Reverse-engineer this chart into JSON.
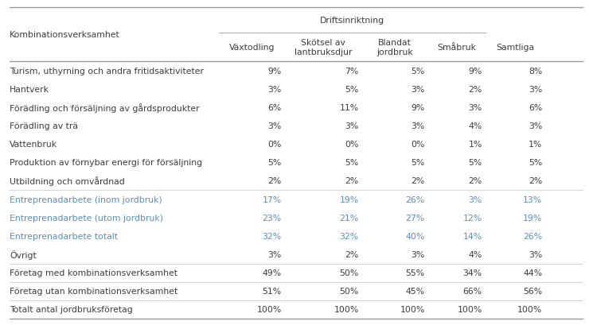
{
  "header_group": "Driftsinriktning",
  "col_headers": [
    "Kombinationsverksamhet",
    "Växtodling",
    "Skötsel av\nlantbruksdjur",
    "Blandat\njordbruk",
    "Småbruk",
    "Samtliga"
  ],
  "rows": [
    {
      "label": "Turism, uthyrning och andra fritidsaktiviteter",
      "values": [
        "9%",
        "7%",
        "5%",
        "9%",
        "8%"
      ],
      "color": "#3c3c3c"
    },
    {
      "label": "Hantverk",
      "values": [
        "3%",
        "5%",
        "3%",
        "2%",
        "3%"
      ],
      "color": "#3c3c3c"
    },
    {
      "label": "Förädling och försäljning av gårdsprodukter",
      "values": [
        "6%",
        "11%",
        "9%",
        "3%",
        "6%"
      ],
      "color": "#3c3c3c"
    },
    {
      "label": "Förädling av trä",
      "values": [
        "3%",
        "3%",
        "3%",
        "4%",
        "3%"
      ],
      "color": "#3c3c3c"
    },
    {
      "label": "Vattenbruk",
      "values": [
        "0%",
        "0%",
        "0%",
        "1%",
        "1%"
      ],
      "color": "#3c3c3c"
    },
    {
      "label": "Produktion av förnybar energi för försäljning",
      "values": [
        "5%",
        "5%",
        "5%",
        "5%",
        "5%"
      ],
      "color": "#3c3c3c"
    },
    {
      "label": "Utbildning och omvårdnad",
      "values": [
        "2%",
        "2%",
        "2%",
        "2%",
        "2%"
      ],
      "color": "#3c3c3c"
    },
    {
      "label": "Entreprenadarbete (inom jordbruk)",
      "values": [
        "17%",
        "19%",
        "26%",
        "3%",
        "13%"
      ],
      "color": "#5b8db8"
    },
    {
      "label": "Entreprenadarbete (utom jordbruk)",
      "values": [
        "23%",
        "21%",
        "27%",
        "12%",
        "19%"
      ],
      "color": "#5b8db8"
    },
    {
      "label": "Entreprenadarbete totalt",
      "values": [
        "32%",
        "32%",
        "40%",
        "14%",
        "26%"
      ],
      "color": "#5b8db8"
    },
    {
      "label": "Övrigt",
      "values": [
        "3%",
        "2%",
        "3%",
        "4%",
        "3%"
      ],
      "color": "#3c3c3c"
    },
    {
      "label": "Företag med kombinationsverksamhet",
      "values": [
        "49%",
        "50%",
        "55%",
        "34%",
        "44%"
      ],
      "color": "#3c3c3c"
    },
    {
      "label": "Företag utan kombinationsverksamhet",
      "values": [
        "51%",
        "50%",
        "45%",
        "66%",
        "56%"
      ],
      "color": "#3c3c3c"
    },
    {
      "label": "Totalt antal jordbruksföretag",
      "values": [
        "100%",
        "100%",
        "100%",
        "100%",
        "100%"
      ],
      "color": "#3c3c3c"
    }
  ],
  "separator_after": [
    6,
    10,
    11,
    12
  ],
  "background_color": "#ffffff",
  "header_color": "#3c3c3c",
  "line_color_dark": "#999999",
  "line_color_light": "#cccccc",
  "fontsize": 7.8,
  "header_fontsize": 7.8
}
